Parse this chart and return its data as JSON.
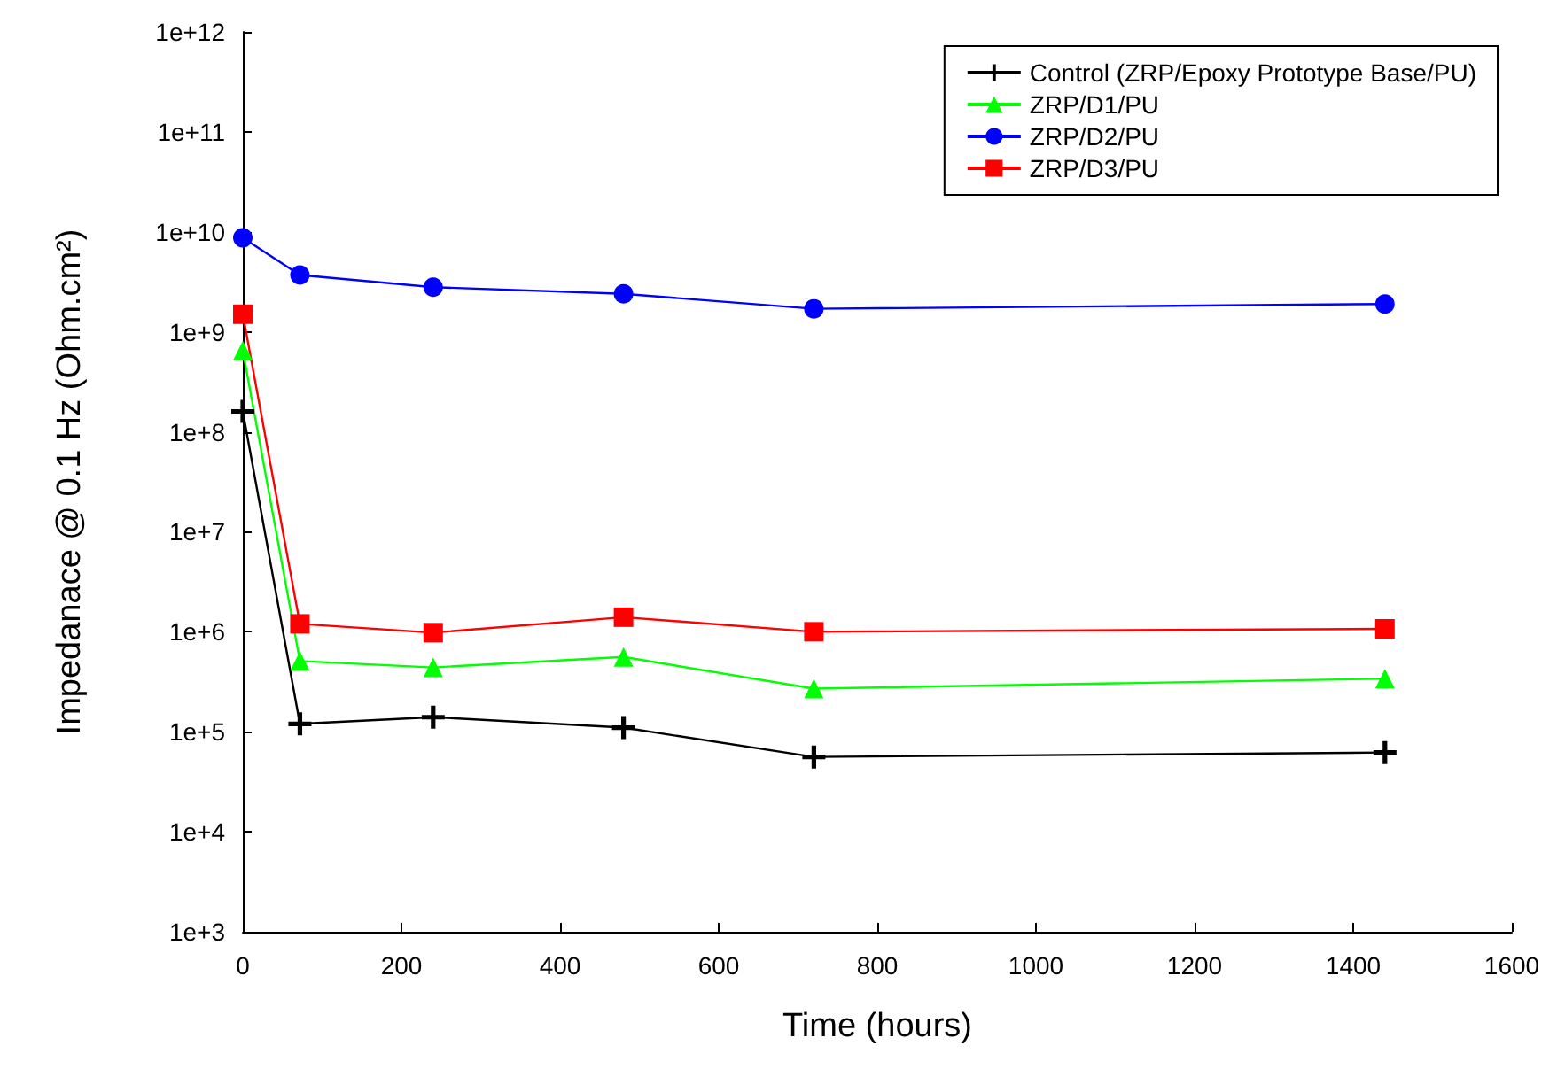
{
  "chart_data": {
    "type": "line",
    "xlabel": "Time (hours)",
    "ylabel": "Impedanace @ 0.1 Hz (Ohm.cm²)",
    "x": [
      0,
      72,
      240,
      480,
      720,
      1440
    ],
    "series": [
      {
        "name": "Control (ZRP/Epoxy Prototype Base/PU)",
        "color": "#000000",
        "marker": "cross",
        "values": [
          160000000,
          120000,
          140000,
          110000,
          56000,
          62000
        ]
      },
      {
        "name": "ZRP/D1/PU",
        "color": "#00ff00",
        "marker": "triangle",
        "values": [
          650000000,
          510000,
          440000,
          560000,
          270000,
          340000
        ]
      },
      {
        "name": "ZRP/D2/PU",
        "color": "#0000ff",
        "marker": "circle",
        "values": [
          8700000000,
          3700000000,
          2800000000,
          2400000000,
          1700000000,
          1900000000
        ]
      },
      {
        "name": "ZRP/D3/PU",
        "color": "#ff0000",
        "marker": "square",
        "values": [
          1500000000,
          1200000,
          980000,
          1400000,
          1000000,
          1070000
        ]
      }
    ],
    "log": "y",
    "xlim": [
      0,
      1600
    ],
    "xticks": [
      0,
      200,
      400,
      600,
      800,
      1000,
      1200,
      1400,
      1600
    ],
    "ylim": [
      1000,
      1000000000000
    ],
    "yticks": [
      {
        "value": 1000,
        "label": "1e+3"
      },
      {
        "value": 10000,
        "label": "1e+4"
      },
      {
        "value": 100000,
        "label": "1e+5"
      },
      {
        "value": 1000000,
        "label": "1e+6"
      },
      {
        "value": 10000000,
        "label": "1e+7"
      },
      {
        "value": 100000000,
        "label": "1e+8"
      },
      {
        "value": 1000000000,
        "label": "1e+9"
      },
      {
        "value": 10000000000,
        "label": "1e+10"
      },
      {
        "value": 100000000000,
        "label": "1e+11"
      },
      {
        "value": 1000000000000,
        "label": "1e+12"
      }
    ],
    "grid": false,
    "legend": "top right",
    "line_style": "solid"
  }
}
